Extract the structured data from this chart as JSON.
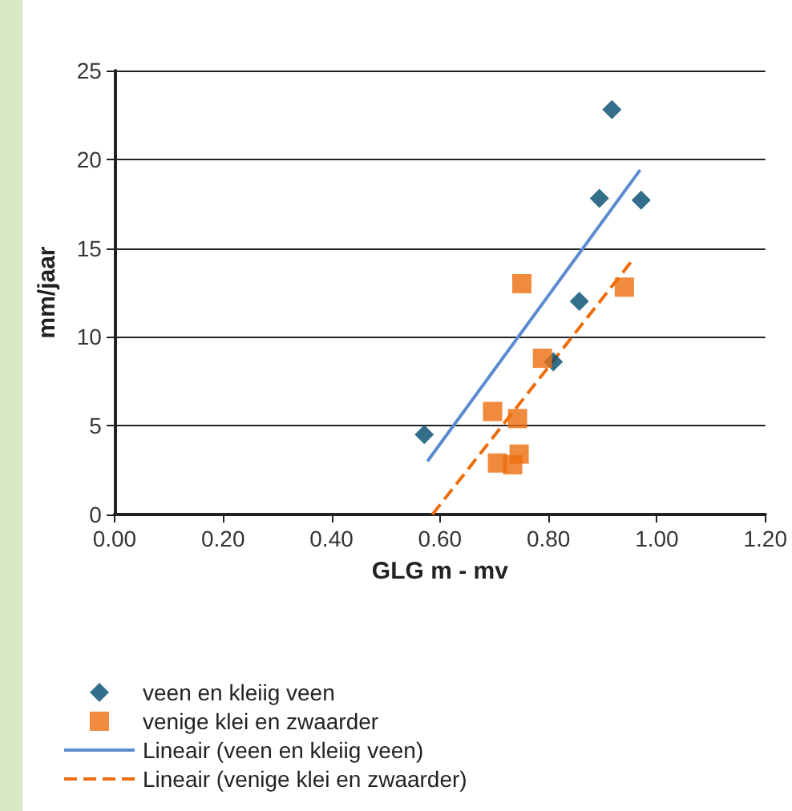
{
  "chart_data": {
    "type": "scatter",
    "xlabel": "GLG m - mv",
    "ylabel": "mm/jaar",
    "xlim": [
      0,
      1.2
    ],
    "xticks": [
      {
        "value": 0,
        "label": "0.00"
      },
      {
        "value": 0.2,
        "label": "0.20"
      },
      {
        "value": 0.4,
        "label": "0.40"
      },
      {
        "value": 0.6,
        "label": "0.60"
      },
      {
        "value": 0.8,
        "label": "0.80"
      },
      {
        "value": 1,
        "label": "1.00"
      },
      {
        "value": 1.2,
        "label": "1.20"
      }
    ],
    "ylim": [
      0,
      25
    ],
    "yticks": [
      0,
      5,
      10,
      15,
      20,
      25
    ],
    "grid": "y",
    "legend": "bottom left",
    "series": [
      {
        "name": "veen en kleiig veen",
        "type": "scatter",
        "marker": "diamond",
        "color": "#004b6e",
        "x": [
          0.571,
          0.809,
          0.857,
          0.894,
          0.917,
          0.971
        ],
        "values": [
          4.5,
          8.6,
          12.0,
          17.8,
          22.8,
          17.7
        ]
      },
      {
        "name": "venige klei en zwaarder",
        "type": "scatter",
        "marker": "square",
        "color": "#ec6d0c",
        "x": [
          0.751,
          0.789,
          0.697,
          0.743,
          0.706,
          0.734,
          0.746,
          0.94
        ],
        "values": [
          13.0,
          8.8,
          5.8,
          5.4,
          2.9,
          2.8,
          3.4,
          12.8
        ]
      },
      {
        "name": "Lineair (veen en kleiig veen)",
        "type": "line",
        "marker": "none",
        "line_style": "solid",
        "color": "#5b8bd0",
        "x": [
          0.577,
          0.969
        ],
        "values": [
          3.0,
          19.4
        ]
      },
      {
        "name": "Lineair (venige klei en zwaarder)",
        "type": "line",
        "marker": "none",
        "line_style": "dashed",
        "color": "#ec6d0c",
        "x": [
          0.586,
          0.957
        ],
        "values": [
          0,
          14.4
        ]
      }
    ]
  }
}
